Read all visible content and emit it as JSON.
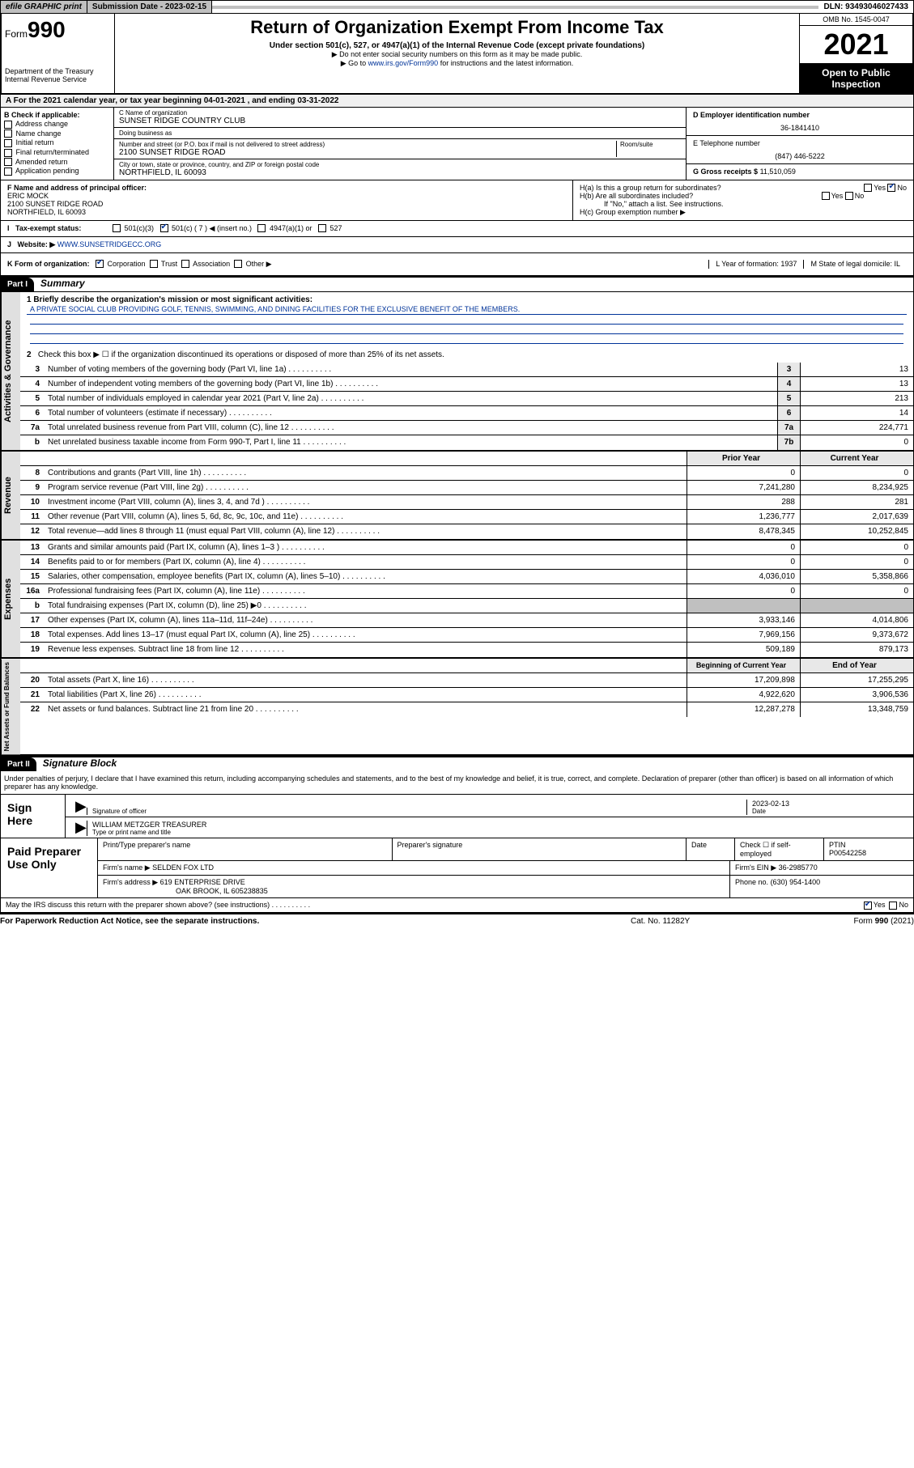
{
  "top": {
    "efile": "efile GRAPHIC print",
    "sub_label": "Submission Date - 2023-02-15",
    "dln": "DLN: 93493046027433"
  },
  "header": {
    "form_prefix": "Form",
    "form_num": "990",
    "dept": "Department of the Treasury",
    "irs": "Internal Revenue Service",
    "title": "Return of Organization Exempt From Income Tax",
    "sub1": "Under section 501(c), 527, or 4947(a)(1) of the Internal Revenue Code (except private foundations)",
    "sub2": "▶ Do not enter social security numbers on this form as it may be made public.",
    "sub3": "▶ Go to www.irs.gov/Form990 for instructions and the latest information.",
    "sub3_link": "www.irs.gov/Form990",
    "omb": "OMB No. 1545-0047",
    "year": "2021",
    "inspection": "Open to Public Inspection"
  },
  "row_a": "A For the 2021 calendar year, or tax year beginning 04-01-2021 , and ending 03-31-2022",
  "col_b": {
    "label": "B Check if applicable:",
    "items": [
      "Address change",
      "Name change",
      "Initial return",
      "Final return/terminated",
      "Amended return",
      "Application pending"
    ]
  },
  "col_c": {
    "name_lbl": "C Name of organization",
    "name": "SUNSET RIDGE COUNTRY CLUB",
    "dba_lbl": "Doing business as",
    "dba": "",
    "addr_lbl": "Number and street (or P.O. box if mail is not delivered to street address)",
    "room_lbl": "Room/suite",
    "addr": "2100 SUNSET RIDGE ROAD",
    "city_lbl": "City or town, state or province, country, and ZIP or foreign postal code",
    "city": "NORTHFIELD, IL  60093"
  },
  "col_d": {
    "ein_lbl": "D Employer identification number",
    "ein": "36-1841410",
    "phone_lbl": "E Telephone number",
    "phone": "(847) 446-5222",
    "gross_lbl": "G Gross receipts $",
    "gross": "11,510,059"
  },
  "row_f": {
    "lbl": "F Name and address of principal officer:",
    "name": "ERIC MOCK",
    "addr1": "2100 SUNSET RIDGE ROAD",
    "addr2": "NORTHFIELD, IL  60093"
  },
  "row_h": {
    "ha": "H(a)  Is this a group return for subordinates?",
    "ha_yes": "Yes",
    "ha_no": "No",
    "hb": "H(b)  Are all subordinates included?",
    "hb_yes": "Yes",
    "hb_no": "No",
    "hb_note": "If \"No,\" attach a list. See instructions.",
    "hc": "H(c)  Group exemption number ▶"
  },
  "row_i": {
    "lbl": "Tax-exempt status:",
    "opts": [
      "501(c)(3)",
      "501(c) ( 7 ) ◀ (insert no.)",
      "4947(a)(1) or",
      "527"
    ],
    "checked_idx": 1
  },
  "row_j": {
    "lbl": "Website: ▶",
    "val": "WWW.SUNSETRIDGECC.ORG"
  },
  "row_k": {
    "lbl": "K Form of organization:",
    "opts": [
      "Corporation",
      "Trust",
      "Association",
      "Other ▶"
    ],
    "checked_idx": 0,
    "l": "L Year of formation: 1937",
    "m": "M State of legal domicile: IL"
  },
  "part1": {
    "hdr": "Part I",
    "title": "Summary",
    "mission_lbl": "1   Briefly describe the organization's mission or most significant activities:",
    "mission": "A PRIVATE SOCIAL CLUB PROVIDING GOLF, TENNIS, SWIMMING, AND DINING FACILITIES FOR THE EXCLUSIVE BENEFIT OF THE MEMBERS.",
    "line2": "Check this box ▶ ☐  if the organization discontinued its operations or disposed of more than 25% of its net assets."
  },
  "gov_lines": [
    {
      "n": "3",
      "t": "Number of voting members of the governing body (Part VI, line 1a)",
      "box": "3",
      "v": "13"
    },
    {
      "n": "4",
      "t": "Number of independent voting members of the governing body (Part VI, line 1b)",
      "box": "4",
      "v": "13"
    },
    {
      "n": "5",
      "t": "Total number of individuals employed in calendar year 2021 (Part V, line 2a)",
      "box": "5",
      "v": "213"
    },
    {
      "n": "6",
      "t": "Total number of volunteers (estimate if necessary)",
      "box": "6",
      "v": "14"
    },
    {
      "n": "7a",
      "t": "Total unrelated business revenue from Part VIII, column (C), line 12",
      "box": "7a",
      "v": "224,771"
    },
    {
      "n": "b",
      "t": "Net unrelated business taxable income from Form 990-T, Part I, line 11",
      "box": "7b",
      "v": "0"
    }
  ],
  "rev_hdr": {
    "py": "Prior Year",
    "cy": "Current Year"
  },
  "rev_lines": [
    {
      "n": "8",
      "t": "Contributions and grants (Part VIII, line 1h)",
      "py": "0",
      "cy": "0"
    },
    {
      "n": "9",
      "t": "Program service revenue (Part VIII, line 2g)",
      "py": "7,241,280",
      "cy": "8,234,925"
    },
    {
      "n": "10",
      "t": "Investment income (Part VIII, column (A), lines 3, 4, and 7d )",
      "py": "288",
      "cy": "281"
    },
    {
      "n": "11",
      "t": "Other revenue (Part VIII, column (A), lines 5, 6d, 8c, 9c, 10c, and 11e)",
      "py": "1,236,777",
      "cy": "2,017,639"
    },
    {
      "n": "12",
      "t": "Total revenue—add lines 8 through 11 (must equal Part VIII, column (A), line 12)",
      "py": "8,478,345",
      "cy": "10,252,845"
    }
  ],
  "exp_lines": [
    {
      "n": "13",
      "t": "Grants and similar amounts paid (Part IX, column (A), lines 1–3 )",
      "py": "0",
      "cy": "0"
    },
    {
      "n": "14",
      "t": "Benefits paid to or for members (Part IX, column (A), line 4)",
      "py": "0",
      "cy": "0"
    },
    {
      "n": "15",
      "t": "Salaries, other compensation, employee benefits (Part IX, column (A), lines 5–10)",
      "py": "4,036,010",
      "cy": "5,358,866"
    },
    {
      "n": "16a",
      "t": "Professional fundraising fees (Part IX, column (A), line 11e)",
      "py": "0",
      "cy": "0"
    },
    {
      "n": "b",
      "t": "Total fundraising expenses (Part IX, column (D), line 25) ▶0",
      "py": "",
      "cy": "",
      "shade": true
    },
    {
      "n": "17",
      "t": "Other expenses (Part IX, column (A), lines 11a–11d, 11f–24e)",
      "py": "3,933,146",
      "cy": "4,014,806"
    },
    {
      "n": "18",
      "t": "Total expenses. Add lines 13–17 (must equal Part IX, column (A), line 25)",
      "py": "7,969,156",
      "cy": "9,373,672"
    },
    {
      "n": "19",
      "t": "Revenue less expenses. Subtract line 18 from line 12",
      "py": "509,189",
      "cy": "879,173"
    }
  ],
  "net_hdr": {
    "py": "Beginning of Current Year",
    "cy": "End of Year"
  },
  "net_lines": [
    {
      "n": "20",
      "t": "Total assets (Part X, line 16)",
      "py": "17,209,898",
      "cy": "17,255,295"
    },
    {
      "n": "21",
      "t": "Total liabilities (Part X, line 26)",
      "py": "4,922,620",
      "cy": "3,906,536"
    },
    {
      "n": "22",
      "t": "Net assets or fund balances. Subtract line 21 from line 20",
      "py": "12,287,278",
      "cy": "13,348,759"
    }
  ],
  "vtabs": {
    "gov": "Activities & Governance",
    "rev": "Revenue",
    "exp": "Expenses",
    "net": "Net Assets or Fund Balances"
  },
  "part2": {
    "hdr": "Part II",
    "title": "Signature Block",
    "declare": "Under penalties of perjury, I declare that I have examined this return, including accompanying schedules and statements, and to the best of my knowledge and belief, it is true, correct, and complete. Declaration of preparer (other than officer) is based on all information of which preparer has any knowledge."
  },
  "sign": {
    "label": "Sign Here",
    "sig_lbl": "Signature of officer",
    "date": "2023-02-13",
    "date_lbl": "Date",
    "name": "WILLIAM METZGER TREASURER",
    "name_lbl": "Type or print name and title"
  },
  "paid": {
    "label": "Paid Preparer Use Only",
    "h1": "Print/Type preparer's name",
    "h2": "Preparer's signature",
    "h3": "Date",
    "h4_lbl": "Check ☐ if self-employed",
    "ptin_lbl": "PTIN",
    "ptin": "P00542258",
    "firm_lbl": "Firm's name    ▶",
    "firm": "SELDEN FOX LTD",
    "ein_lbl": "Firm's EIN ▶",
    "ein": "36-2985770",
    "addr_lbl": "Firm's address ▶",
    "addr1": "619 ENTERPRISE DRIVE",
    "addr2": "OAK BROOK, IL  605238835",
    "phone_lbl": "Phone no.",
    "phone": "(630) 954-1400"
  },
  "footer": {
    "discuss": "May the IRS discuss this return with the preparer shown above? (see instructions)",
    "yes": "Yes",
    "no": "No",
    "paperwork": "For Paperwork Reduction Act Notice, see the separate instructions.",
    "cat": "Cat. No. 11282Y",
    "form": "Form 990 (2021)"
  }
}
